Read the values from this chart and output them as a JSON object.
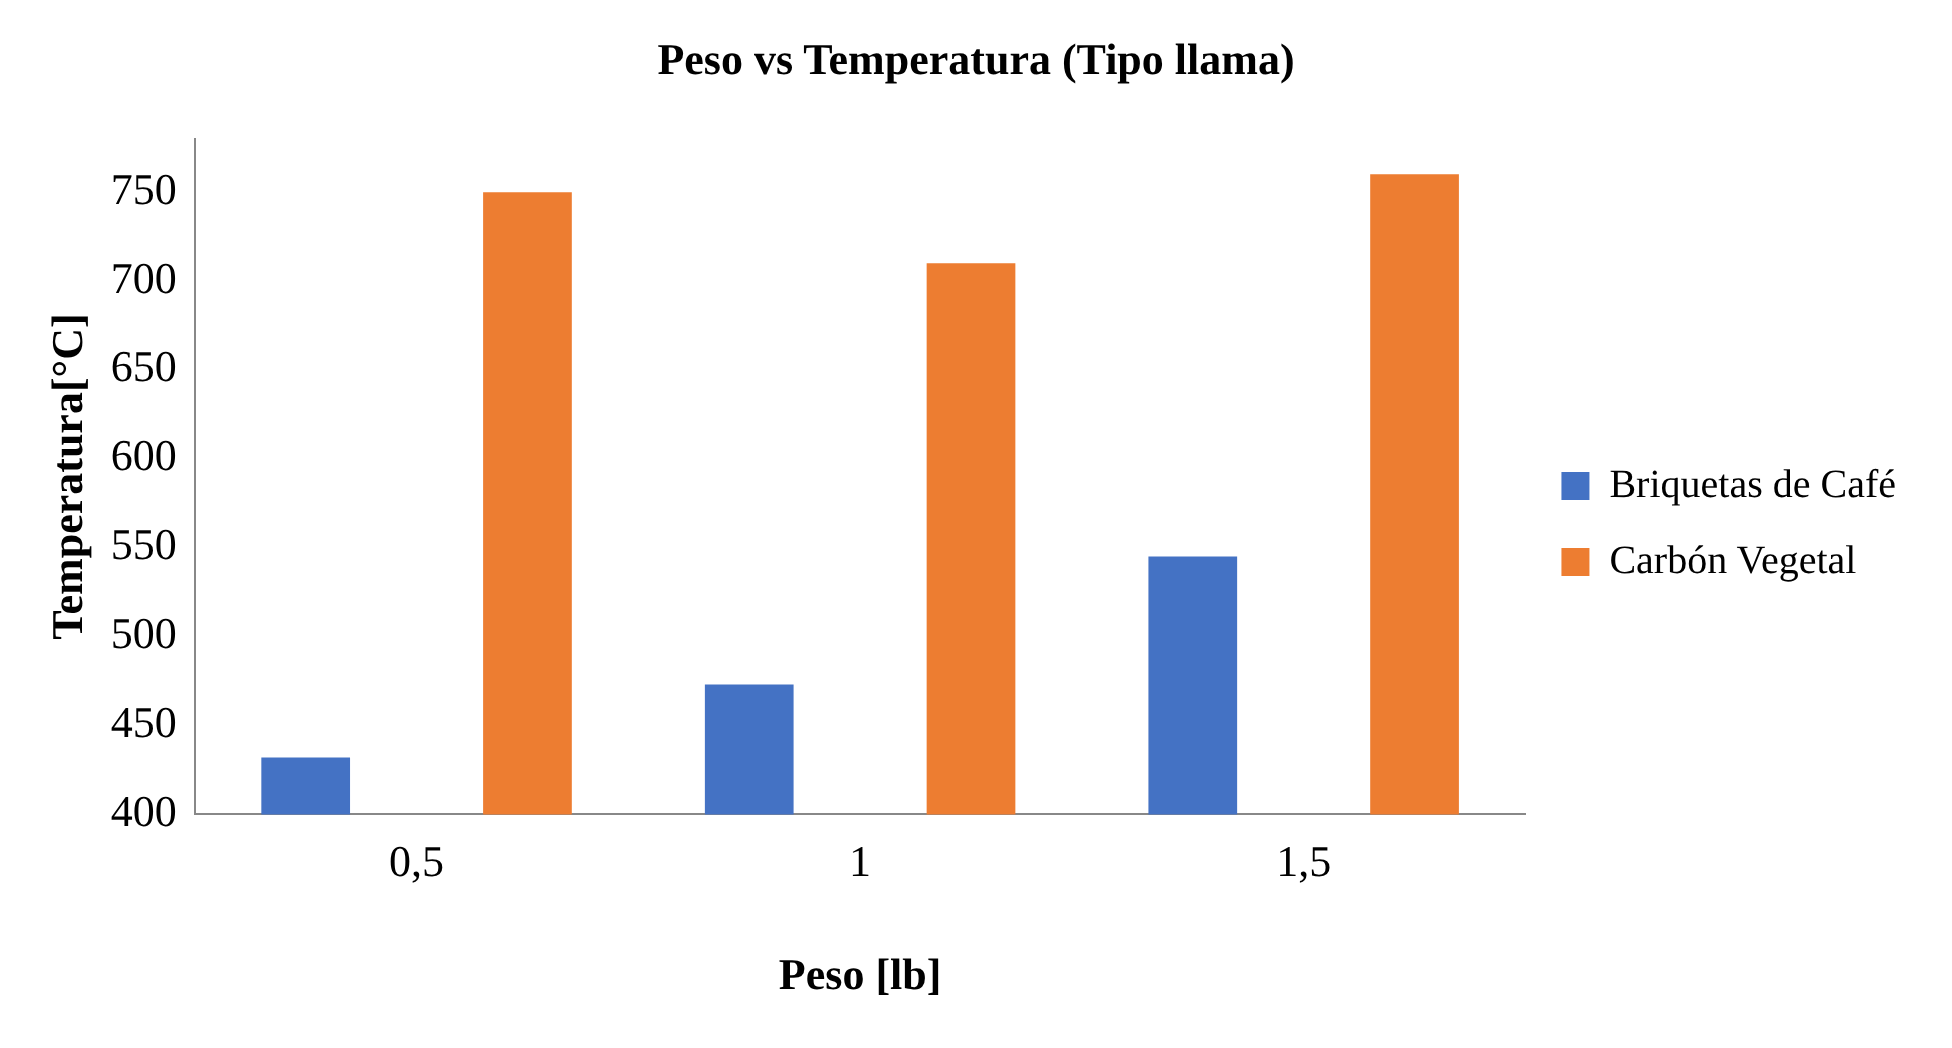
{
  "chart_data": {
    "type": "bar",
    "title": "Peso vs Temperatura (Tipo llama)",
    "xlabel": "Peso [lb]",
    "ylabel": "Temperatura[°C]",
    "categories": [
      "0,5",
      "1",
      "1,5"
    ],
    "series": [
      {
        "name": "Briquetas de Café",
        "color": "#4472c4",
        "values": [
          432,
          473,
          545
        ]
      },
      {
        "name": "Carbón Vegetal",
        "color": "#ed7d31",
        "values": [
          750,
          710,
          760
        ]
      }
    ],
    "ylim": [
      400,
      780
    ],
    "yticks": [
      400,
      450,
      500,
      550,
      600,
      650,
      700,
      750
    ],
    "grid": false,
    "legend": "right"
  }
}
